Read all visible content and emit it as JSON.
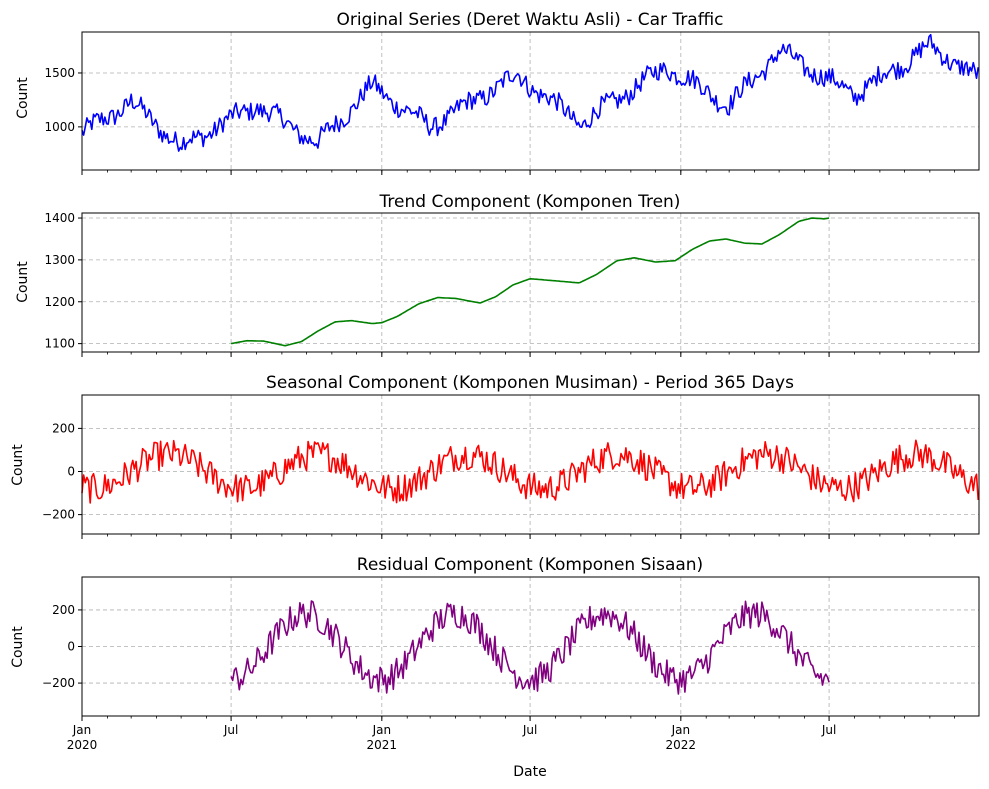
{
  "chart_data": [
    {
      "type": "line",
      "title": "Original Series (Deret Waktu Asli) - Car Traffic",
      "ylabel": "Count",
      "xlabel": "",
      "xlim": [
        "2020-01-01",
        "2022-12-31"
      ],
      "ylim": [
        600,
        1880
      ],
      "yticks": [
        1000,
        1500
      ],
      "grid": true,
      "series": [
        {
          "color": "#0000ff",
          "generator": "original",
          "base": 1000,
          "slope_per_year": 150,
          "seasonal_amplitude": 150,
          "noise_amplitude": 90,
          "start": "2020-01-01",
          "end": "2022-12-31",
          "key_points": [
            [
              "2020-01-01",
              940
            ],
            [
              "2020-03-01",
              1230
            ],
            [
              "2020-05-01",
              820
            ],
            [
              "2020-08-01",
              1200
            ],
            [
              "2020-10-15",
              850
            ],
            [
              "2020-12-20",
              1380
            ],
            [
              "2021-03-01",
              1000
            ],
            [
              "2021-06-15",
              1480
            ],
            [
              "2021-09-01",
              1030
            ],
            [
              "2021-12-15",
              1560
            ],
            [
              "2022-03-01",
              1200
            ],
            [
              "2022-05-01",
              1700
            ],
            [
              "2022-08-01",
              1300
            ],
            [
              "2022-11-01",
              1750
            ],
            [
              "2022-12-31",
              1450
            ]
          ]
        }
      ]
    },
    {
      "type": "line",
      "title": "Trend Component (Komponen Tren)",
      "ylabel": "Count",
      "xlabel": "",
      "xlim": [
        "2020-01-01",
        "2022-12-31"
      ],
      "ylim": [
        1080,
        1412
      ],
      "yticks": [
        1100,
        1200,
        1300,
        1400
      ],
      "grid": true,
      "series": [
        {
          "color": "#008000",
          "generator": "trend",
          "start": "2020-07-01",
          "end": "2022-07-01",
          "key_points": [
            [
              "2020-07-01",
              1100
            ],
            [
              "2020-07-20",
              1107
            ],
            [
              "2020-08-10",
              1106
            ],
            [
              "2020-09-05",
              1095
            ],
            [
              "2020-09-25",
              1105
            ],
            [
              "2020-10-15",
              1130
            ],
            [
              "2020-11-05",
              1152
            ],
            [
              "2020-11-25",
              1155
            ],
            [
              "2020-12-20",
              1148
            ],
            [
              "2021-01-01",
              1150
            ],
            [
              "2021-01-20",
              1165
            ],
            [
              "2021-02-15",
              1195
            ],
            [
              "2021-03-10",
              1210
            ],
            [
              "2021-04-01",
              1208
            ],
            [
              "2021-05-01",
              1197
            ],
            [
              "2021-05-20",
              1212
            ],
            [
              "2021-06-10",
              1240
            ],
            [
              "2021-07-01",
              1255
            ],
            [
              "2021-08-01",
              1250
            ],
            [
              "2021-08-30",
              1245
            ],
            [
              "2021-09-20",
              1265
            ],
            [
              "2021-10-15",
              1298
            ],
            [
              "2021-11-05",
              1305
            ],
            [
              "2021-12-01",
              1295
            ],
            [
              "2021-12-25",
              1298
            ],
            [
              "2022-01-15",
              1325
            ],
            [
              "2022-02-05",
              1345
            ],
            [
              "2022-02-25",
              1350
            ],
            [
              "2022-03-20",
              1340
            ],
            [
              "2022-04-10",
              1338
            ],
            [
              "2022-05-01",
              1360
            ],
            [
              "2022-05-25",
              1392
            ],
            [
              "2022-06-10",
              1400
            ],
            [
              "2022-06-25",
              1398
            ],
            [
              "2022-07-01",
              1400
            ]
          ]
        }
      ]
    },
    {
      "type": "line",
      "title": "Seasonal Component (Komponen Musiman) - Period 365 Days",
      "ylabel": "Count",
      "xlabel": "",
      "xlim": [
        "2020-01-01",
        "2022-12-31"
      ],
      "ylim": [
        -290,
        355
      ],
      "yticks": [
        -200,
        0,
        200
      ],
      "grid": true,
      "series": [
        {
          "color": "#ff0000",
          "generator": "seasonal",
          "amplitude": 100,
          "noise_amplitude": 70,
          "start": "2020-01-01",
          "end": "2022-12-31"
        }
      ]
    },
    {
      "type": "line",
      "title": "Residual Component (Komponen Sisaan)",
      "ylabel": "Count",
      "xlabel": "Date",
      "xlim": [
        "2020-01-01",
        "2022-12-31"
      ],
      "ylim": [
        -380,
        380
      ],
      "yticks": [
        -200,
        0,
        200
      ],
      "grid": true,
      "xticks_major": [
        {
          "date": "2020-01-01",
          "label": "Jan",
          "sublabel": "2020"
        },
        {
          "date": "2020-07-01",
          "label": "Jul",
          "sublabel": ""
        },
        {
          "date": "2021-01-01",
          "label": "Jan",
          "sublabel": "2021"
        },
        {
          "date": "2021-07-01",
          "label": "Jul",
          "sublabel": ""
        },
        {
          "date": "2022-01-01",
          "label": "Jan",
          "sublabel": "2022"
        },
        {
          "date": "2022-07-01",
          "label": "Jul",
          "sublabel": ""
        }
      ],
      "series": [
        {
          "color": "#800080",
          "generator": "residual",
          "amplitude": 180,
          "noise_amplitude": 80,
          "start": "2020-07-01",
          "end": "2022-07-01"
        }
      ]
    }
  ]
}
